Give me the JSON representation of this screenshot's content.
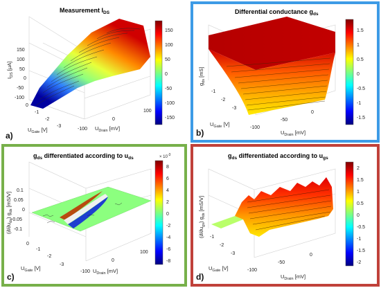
{
  "chart_data": [
    {
      "id": "a",
      "type": "surface",
      "panel_label": "a)",
      "title": "Measurement I",
      "title_sub": "DS",
      "zlabel": "I",
      "zlabel_sub": "DS",
      "zlabel_unit": "[μA]",
      "xlabel": "U",
      "xlabel_sub": "Gate",
      "xlabel_unit": "[V]",
      "ylabel": "U",
      "ylabel_sub": "Drain",
      "ylabel_unit": "[mV]",
      "x_ticks": [
        "0",
        "-1",
        "-2",
        "-3"
      ],
      "y_ticks": [
        "-100",
        "0",
        "100"
      ],
      "z_ticks": [
        "150",
        "100",
        "50",
        "0",
        "-50",
        "-100"
      ],
      "colorbar": {
        "ticks": [
          "150",
          "100",
          "50",
          "0",
          "-50",
          "-100",
          "-150"
        ],
        "range": [
          -180,
          180
        ]
      },
      "description_values": {
        "x_range": [
          -3,
          0
        ],
        "y_range": [
          -100,
          100
        ],
        "z_range": [
          -150,
          150
        ]
      }
    },
    {
      "id": "b",
      "type": "surface",
      "panel_label": "b)",
      "title": "Differential conductance g",
      "title_sub": "ds",
      "zlabel": "g",
      "zlabel_sub": "ds",
      "zlabel_unit": "[mS]",
      "xlabel": "U",
      "xlabel_sub": "Gate",
      "xlabel_unit": "[V]",
      "ylabel": "U",
      "ylabel_sub": "Drain",
      "ylabel_unit": "[mV]",
      "x_ticks": [
        "-1",
        "-2",
        "-3"
      ],
      "y_ticks": [
        "-100",
        "-50",
        "0"
      ],
      "z_ticks": [],
      "colorbar": {
        "ticks": [
          "1.5",
          "1",
          "0.5",
          "0",
          "-0.5",
          "-1",
          "-1.5"
        ],
        "range": [
          -1.8,
          1.8
        ]
      }
    },
    {
      "id": "c",
      "type": "surface",
      "panel_label": "c)",
      "title": "g",
      "title_sub": "ds",
      "title_rest": " differentiated according to u",
      "title_sub2": "ds",
      "zlabel": "(∂/∂u",
      "zlabel_sub": "ds",
      "zlabel_rest": ") g",
      "zlabel_sub2": "ds",
      "zlabel_unit": "[mS/V]",
      "xlabel": "U",
      "xlabel_sub": "Gate",
      "xlabel_unit": "[V]",
      "ylabel": "U",
      "ylabel_sub": "Drain",
      "ylabel_unit": "[mV]",
      "x_ticks": [
        "0",
        "-1",
        "-2",
        "-3"
      ],
      "y_ticks": [
        "-100",
        "0",
        "100"
      ],
      "z_ticks": [
        "0.1",
        "0.05",
        "0",
        "-0.05",
        "-0.1"
      ],
      "colorbar": {
        "exponent": "× 10",
        "exponent_power": "-3",
        "ticks": [
          "8",
          "6",
          "4",
          "2",
          "0",
          "-2",
          "-4",
          "-6",
          "-8"
        ],
        "range": [
          -9,
          9
        ]
      }
    },
    {
      "id": "d",
      "type": "surface",
      "panel_label": "d)",
      "title": "g",
      "title_sub": "ds",
      "title_rest": " differentiated according to u",
      "title_sub2": "gs",
      "zlabel": "(∂/∂u",
      "zlabel_sub": "gs",
      "zlabel_rest": ") g",
      "zlabel_sub2": "ds",
      "zlabel_unit": "[mS/V]",
      "xlabel": "U",
      "xlabel_sub": "Gate",
      "xlabel_unit": "[V]",
      "ylabel": "U",
      "ylabel_sub": "Drain",
      "ylabel_unit": "[mV]",
      "x_ticks": [
        "-1",
        "-2",
        "-3"
      ],
      "y_ticks": [
        "-100",
        "-50",
        "0"
      ],
      "z_ticks": [],
      "colorbar": {
        "ticks": [
          "2",
          "1.5",
          "1",
          "0.5",
          "0",
          "-0.5",
          "-1",
          "-1.5",
          "-2"
        ],
        "range": [
          -2.3,
          2.3
        ]
      }
    }
  ],
  "colormap": [
    "#00007f",
    "#0000ff",
    "#007fff",
    "#00ffff",
    "#7fff7f",
    "#ffff00",
    "#ff7f00",
    "#ff0000",
    "#7f0000"
  ],
  "frame_colors": {
    "b": "#3d9be6",
    "c": "#77b04a",
    "d": "#c0413a"
  }
}
